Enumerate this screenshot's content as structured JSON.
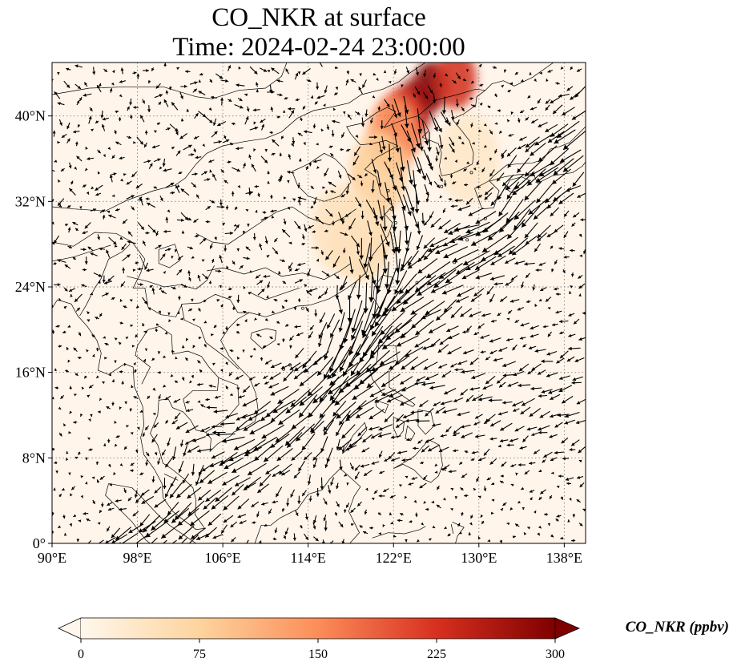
{
  "figure": {
    "title_line1": "CO_NKR at surface",
    "title_line2": "Time: 2024-02-24 23:00:00"
  },
  "map": {
    "projection": "PlateCarree",
    "extent_lon": [
      90,
      140
    ],
    "extent_lat": [
      0,
      45
    ],
    "lon_ticks": [
      {
        "value": 90,
        "label": "90°E"
      },
      {
        "value": 98,
        "label": "98°E"
      },
      {
        "value": 106,
        "label": "106°E"
      },
      {
        "value": 114,
        "label": "114°E"
      },
      {
        "value": 122,
        "label": "122°E"
      },
      {
        "value": 130,
        "label": "130°E"
      },
      {
        "value": 138,
        "label": "138°E"
      }
    ],
    "lat_ticks": [
      {
        "value": 0,
        "label": "0°"
      },
      {
        "value": 8,
        "label": "8°N"
      },
      {
        "value": 16,
        "label": "16°N"
      },
      {
        "value": 24,
        "label": "24°N"
      },
      {
        "value": 32,
        "label": "32°N"
      },
      {
        "value": 40,
        "label": "40°N"
      }
    ],
    "gridlines": true,
    "features": [
      "coastlines",
      "country-borders",
      "wind-vectors",
      "filled-concentration"
    ],
    "colormap": "OrRd",
    "background_color": "#fff5eb",
    "plumes": [
      {
        "lon": 125.5,
        "lat": 42.8,
        "value": 300
      },
      {
        "lon": 124.0,
        "lat": 41.0,
        "value": 280
      },
      {
        "lon": 122.8,
        "lat": 39.6,
        "value": 210
      },
      {
        "lon": 122.0,
        "lat": 38.3,
        "value": 140
      },
      {
        "lon": 127.8,
        "lat": 43.5,
        "value": 230
      },
      {
        "lon": 120.6,
        "lat": 34.6,
        "value": 80
      },
      {
        "lon": 119.0,
        "lat": 28.6,
        "value": 60
      },
      {
        "lon": 117.2,
        "lat": 29.4,
        "value": 45
      },
      {
        "lon": 129.0,
        "lat": 36.0,
        "value": 35
      }
    ]
  },
  "colorbar": {
    "label": "CO_NKR (ppbv)",
    "vmin": 0,
    "vmax": 300,
    "extend": "both",
    "ticks": [
      {
        "value": 0,
        "label": "0"
      },
      {
        "value": 75,
        "label": "75"
      },
      {
        "value": 150,
        "label": "150"
      },
      {
        "value": 225,
        "label": "225"
      },
      {
        "value": 300,
        "label": "300"
      }
    ]
  }
}
